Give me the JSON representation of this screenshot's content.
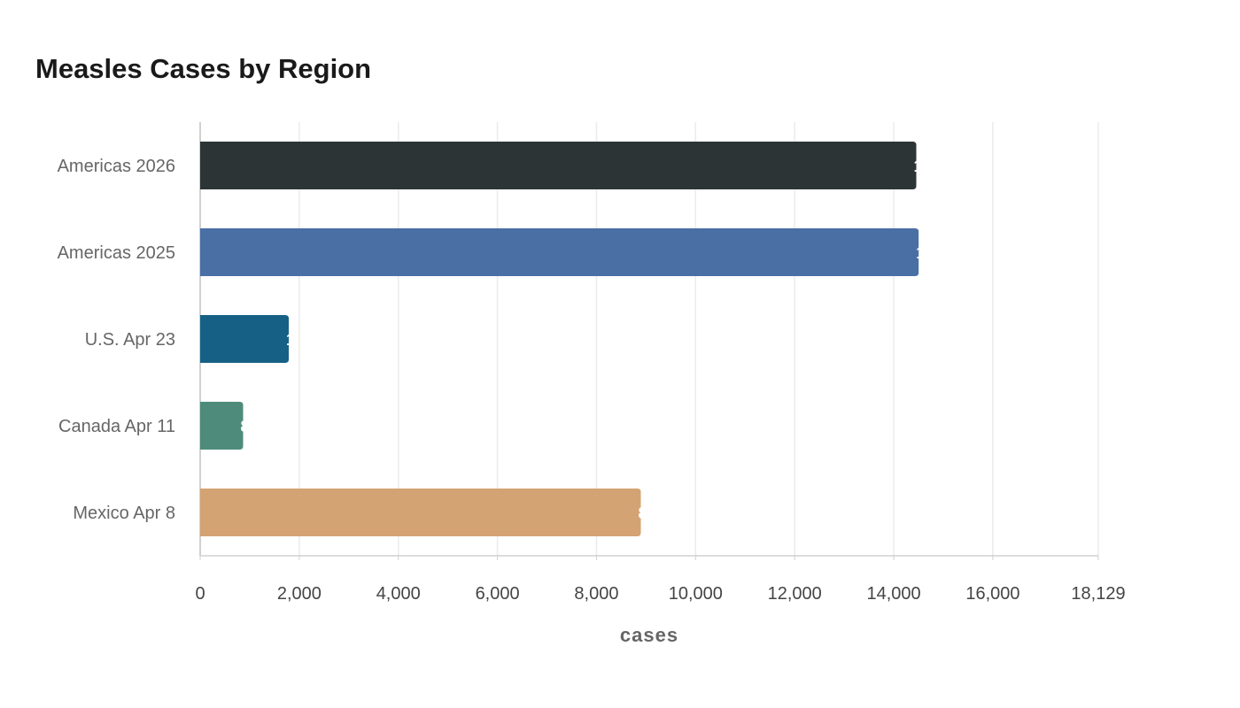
{
  "chart_data": {
    "type": "bar",
    "orientation": "horizontal",
    "title": "Measles Cases by Region",
    "xlabel": "cases",
    "ylabel": "",
    "categories": [
      "Americas 2026",
      "Americas 2025",
      "U.S. Apr 23",
      "Canada Apr 11",
      "Mexico Apr 8"
    ],
    "values": [
      14455,
      14503,
      1788,
      867,
      8895
    ],
    "colors": [
      "#2d3436",
      "#4a6fa5",
      "#166086",
      "#4e8b7a",
      "#d4a373"
    ],
    "xlim": [
      0,
      18129
    ],
    "xticks": [
      0,
      2000,
      4000,
      6000,
      8000,
      10000,
      12000,
      14000,
      16000,
      18129
    ],
    "xtick_labels": [
      "0",
      "2,000",
      "4,000",
      "6,000",
      "8,000",
      "10,000",
      "12,000",
      "14,000",
      "16,000",
      "18,129"
    ],
    "grid": "vertical",
    "data_labels": "white, at bar end",
    "legend": "none"
  }
}
